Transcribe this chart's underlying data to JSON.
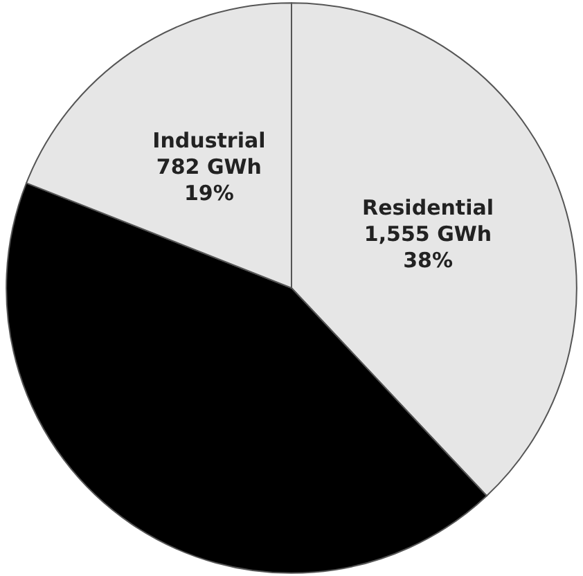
{
  "chart_data": {
    "type": "pie",
    "categories": [
      "Residential",
      null,
      "Industrial"
    ],
    "values": [
      38,
      43,
      19
    ],
    "colors": [
      "#e6e6e6",
      "#000000",
      "#e6e6e6"
    ],
    "value_labels": [
      "1,555 GWh\n38%",
      null,
      "782 GWh\n19%"
    ],
    "legend": false
  }
}
